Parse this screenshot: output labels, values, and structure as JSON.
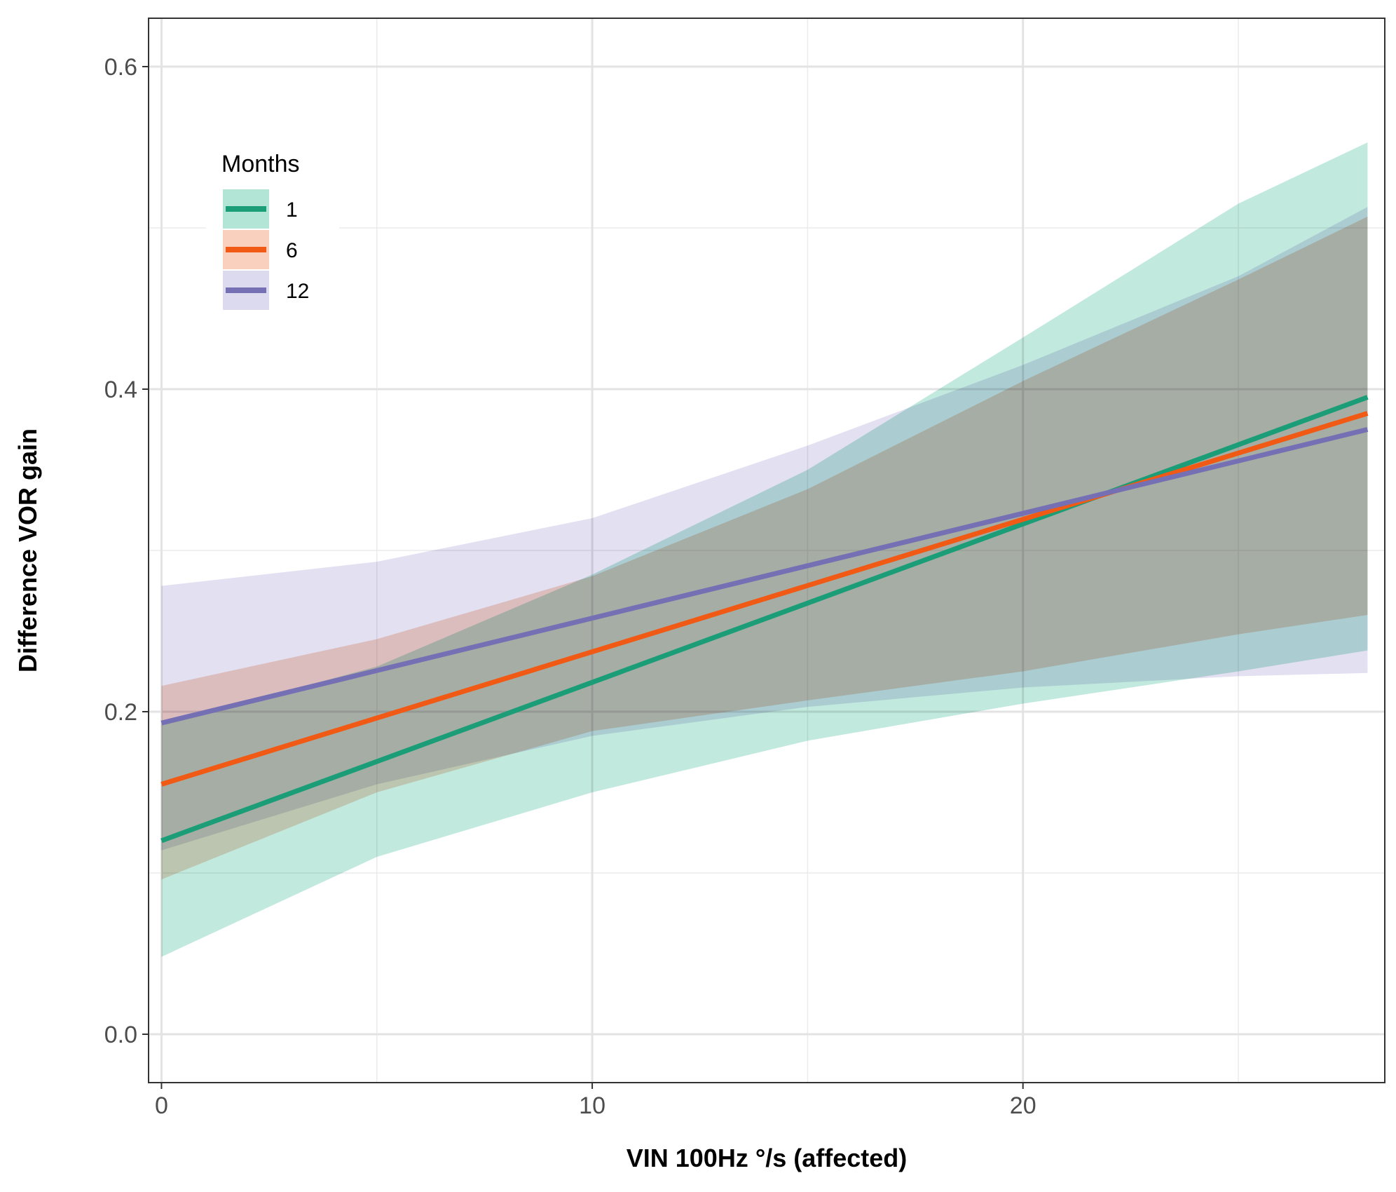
{
  "chart_data": {
    "type": "line",
    "title": "",
    "xlabel": "VIN 100Hz °/s (affected)",
    "ylabel": "Difference VOR gain",
    "xlim": [
      -0.3,
      28.4
    ],
    "ylim": [
      -0.03,
      0.63
    ],
    "x_ticks": [
      0,
      10,
      20
    ],
    "x_tick_labels": [
      "0",
      "10",
      "20"
    ],
    "y_ticks": [
      0.0,
      0.2,
      0.4,
      0.6
    ],
    "y_tick_labels": [
      "0.0",
      "0.2",
      "0.4",
      "0.6"
    ],
    "x_minor_ticks": [
      5,
      15,
      25
    ],
    "y_minor_ticks": [
      0.1,
      0.3,
      0.5
    ],
    "grid": true,
    "legend": {
      "title": "Months",
      "position": "top-left"
    },
    "series": [
      {
        "name": "1",
        "color": "#1b9e77",
        "band_color": "#a6e0d0",
        "x": [
          0,
          28
        ],
        "values": [
          0.12,
          0.395
        ],
        "band_x": [
          0,
          5,
          10,
          15,
          20,
          25,
          28
        ],
        "band_lower": [
          0.048,
          0.11,
          0.15,
          0.182,
          0.205,
          0.225,
          0.238
        ],
        "band_upper": [
          0.192,
          0.228,
          0.285,
          0.35,
          0.432,
          0.515,
          0.553
        ]
      },
      {
        "name": "6",
        "color": "#f05a14",
        "band_color": "#f7c8b2",
        "x": [
          0,
          28
        ],
        "values": [
          0.155,
          0.385
        ],
        "band_x": [
          0,
          5,
          10,
          15,
          20,
          25,
          28
        ],
        "band_lower": [
          0.096,
          0.15,
          0.188,
          0.207,
          0.225,
          0.248,
          0.26
        ],
        "band_upper": [
          0.216,
          0.245,
          0.284,
          0.338,
          0.405,
          0.468,
          0.507
        ]
      },
      {
        "name": "12",
        "color": "#7570b3",
        "band_color": "#d5d3eb",
        "x": [
          0,
          28
        ],
        "values": [
          0.193,
          0.375
        ],
        "band_x": [
          0,
          5,
          10,
          15,
          20,
          25,
          28
        ],
        "band_lower": [
          0.114,
          0.155,
          0.185,
          0.203,
          0.215,
          0.222,
          0.224
        ],
        "band_upper": [
          0.278,
          0.293,
          0.32,
          0.365,
          0.415,
          0.47,
          0.513
        ]
      }
    ]
  }
}
